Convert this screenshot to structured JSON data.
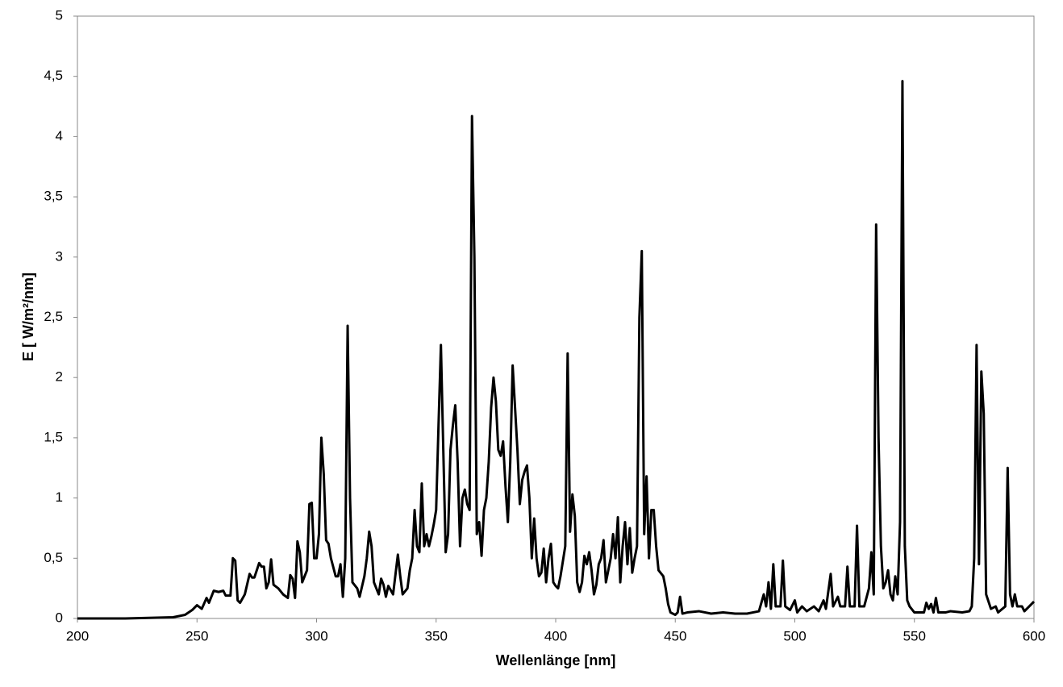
{
  "chart_data": {
    "type": "line",
    "xlabel": "Wellenlänge [nm]",
    "ylabel": "E [ W/m²/nm]",
    "color": "#000000",
    "xlim": [
      200,
      600
    ],
    "ylim": [
      0,
      5
    ],
    "xticks": [
      200,
      250,
      300,
      350,
      400,
      450,
      500,
      550,
      600
    ],
    "yticks": [
      0,
      {
        "value": 0.5,
        "label": "0,5"
      },
      1,
      {
        "value": 1.5,
        "label": "1,5"
      },
      2,
      {
        "value": 2.5,
        "label": "2,5"
      },
      3,
      {
        "value": 3.5,
        "label": "3,5"
      },
      4,
      {
        "value": 4.5,
        "label": "4,5"
      },
      5
    ],
    "x": [
      200,
      210,
      220,
      230,
      240,
      245,
      248,
      250,
      252,
      254,
      255,
      257,
      259,
      261,
      262,
      264,
      265,
      266,
      267,
      268,
      270,
      272,
      273,
      274,
      276,
      277,
      278,
      279,
      280,
      281,
      282,
      284,
      286,
      288,
      289,
      290,
      291,
      292,
      293,
      294,
      296,
      297,
      298,
      299,
      300,
      301,
      302,
      303,
      304,
      305,
      306,
      308,
      309,
      310,
      311,
      312,
      313,
      314,
      315,
      317,
      318,
      320,
      321,
      322,
      323,
      324,
      325,
      326,
      327,
      328,
      329,
      330,
      332,
      334,
      335,
      336,
      338,
      339,
      340,
      341,
      342,
      343,
      344,
      345,
      346,
      347,
      348,
      349,
      350,
      351,
      352,
      353,
      354,
      355,
      356,
      357,
      358,
      359,
      360,
      361,
      362,
      363,
      364,
      365,
      366,
      367,
      368,
      369,
      370,
      371,
      372,
      373,
      374,
      375,
      376,
      377,
      378,
      379,
      380,
      381,
      382,
      383,
      384,
      385,
      386,
      387,
      388,
      389,
      390,
      391,
      392,
      393,
      394,
      395,
      396,
      397,
      398,
      399,
      400,
      401,
      402,
      404,
      405,
      406,
      407,
      408,
      409,
      410,
      411,
      412,
      413,
      414,
      415,
      416,
      417,
      418,
      419,
      420,
      421,
      422,
      423,
      424,
      425,
      426,
      427,
      428,
      429,
      430,
      431,
      432,
      433,
      434,
      435,
      436,
      437,
      438,
      439,
      440,
      441,
      442,
      443,
      445,
      446,
      447,
      448,
      450,
      451,
      452,
      453,
      455,
      460,
      465,
      470,
      475,
      480,
      485,
      487,
      488,
      489,
      490,
      491,
      492,
      494,
      495,
      496,
      498,
      500,
      501,
      503,
      505,
      508,
      510,
      512,
      513,
      515,
      516,
      518,
      519,
      521,
      522,
      523,
      525,
      526,
      527,
      529,
      531,
      532,
      533,
      534,
      535,
      536,
      537,
      538,
      539,
      540,
      541,
      542,
      543,
      544,
      545,
      546,
      547,
      548,
      550,
      552,
      554,
      555,
      556,
      557,
      558,
      559,
      560,
      563,
      565,
      570,
      573,
      574,
      575,
      576,
      577,
      578,
      579,
      580,
      582,
      584,
      585,
      588,
      589,
      590,
      591,
      592,
      593,
      595,
      596,
      598,
      600
    ],
    "values": [
      0,
      0,
      0,
      0.005,
      0.01,
      0.03,
      0.07,
      0.11,
      0.08,
      0.17,
      0.13,
      0.23,
      0.22,
      0.23,
      0.19,
      0.19,
      0.5,
      0.48,
      0.15,
      0.13,
      0.2,
      0.37,
      0.34,
      0.34,
      0.46,
      0.43,
      0.43,
      0.25,
      0.3,
      0.49,
      0.28,
      0.25,
      0.2,
      0.17,
      0.36,
      0.33,
      0.17,
      0.64,
      0.55,
      0.3,
      0.4,
      0.95,
      0.96,
      0.5,
      0.5,
      0.7,
      1.5,
      1.2,
      0.65,
      0.62,
      0.5,
      0.35,
      0.35,
      0.45,
      0.18,
      0.5,
      2.43,
      1.0,
      0.3,
      0.25,
      0.18,
      0.35,
      0.5,
      0.72,
      0.6,
      0.3,
      0.25,
      0.2,
      0.33,
      0.28,
      0.18,
      0.27,
      0.2,
      0.53,
      0.35,
      0.2,
      0.25,
      0.4,
      0.5,
      0.9,
      0.6,
      0.55,
      1.12,
      0.6,
      0.7,
      0.6,
      0.68,
      0.78,
      0.9,
      1.6,
      2.27,
      1.4,
      0.55,
      0.7,
      1.4,
      1.6,
      1.77,
      1.3,
      0.6,
      1.0,
      1.07,
      0.95,
      0.9,
      4.17,
      3.0,
      0.7,
      0.8,
      0.52,
      0.9,
      1.0,
      1.3,
      1.75,
      2.0,
      1.8,
      1.4,
      1.35,
      1.47,
      1.1,
      0.8,
      1.3,
      2.1,
      1.75,
      1.4,
      0.95,
      1.15,
      1.22,
      1.27,
      1.0,
      0.5,
      0.83,
      0.5,
      0.35,
      0.38,
      0.58,
      0.3,
      0.5,
      0.62,
      0.3,
      0.27,
      0.25,
      0.35,
      0.6,
      2.2,
      0.72,
      1.03,
      0.85,
      0.3,
      0.22,
      0.3,
      0.52,
      0.45,
      0.55,
      0.4,
      0.2,
      0.28,
      0.45,
      0.5,
      0.65,
      0.3,
      0.4,
      0.5,
      0.7,
      0.5,
      0.84,
      0.3,
      0.6,
      0.8,
      0.45,
      0.75,
      0.38,
      0.5,
      0.6,
      2.5,
      3.05,
      0.7,
      1.18,
      0.5,
      0.9,
      0.9,
      0.6,
      0.4,
      0.35,
      0.25,
      0.12,
      0.05,
      0.03,
      0.05,
      0.18,
      0.04,
      0.05,
      0.06,
      0.04,
      0.05,
      0.04,
      0.04,
      0.06,
      0.2,
      0.1,
      0.3,
      0.08,
      0.45,
      0.1,
      0.1,
      0.48,
      0.1,
      0.07,
      0.15,
      0.05,
      0.1,
      0.06,
      0.1,
      0.06,
      0.15,
      0.08,
      0.37,
      0.1,
      0.18,
      0.1,
      0.1,
      0.43,
      0.1,
      0.1,
      0.77,
      0.1,
      0.1,
      0.25,
      0.55,
      0.2,
      3.27,
      1.5,
      0.6,
      0.25,
      0.3,
      0.4,
      0.2,
      0.15,
      0.35,
      0.2,
      0.8,
      4.46,
      0.6,
      0.15,
      0.1,
      0.05,
      0.05,
      0.05,
      0.13,
      0.08,
      0.12,
      0.05,
      0.17,
      0.05,
      0.05,
      0.06,
      0.05,
      0.06,
      0.1,
      0.5,
      2.27,
      0.45,
      2.05,
      1.7,
      0.2,
      0.08,
      0.1,
      0.05,
      0.1,
      1.25,
      0.2,
      0.1,
      0.2,
      0.1,
      0.1,
      0.06,
      0.1,
      0.14
    ]
  }
}
